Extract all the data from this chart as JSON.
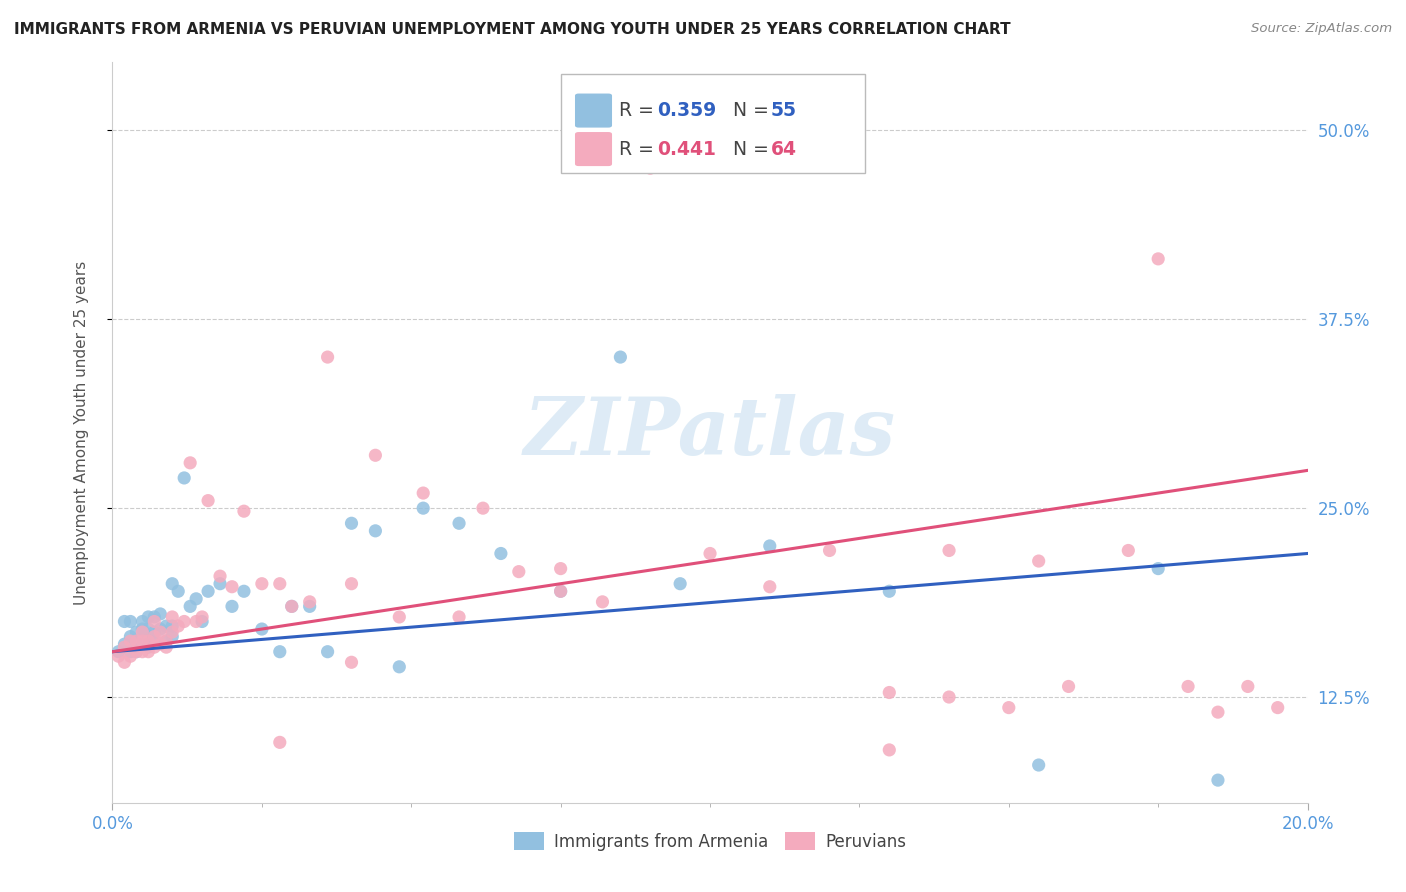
{
  "title": "IMMIGRANTS FROM ARMENIA VS PERUVIAN UNEMPLOYMENT AMONG YOUTH UNDER 25 YEARS CORRELATION CHART",
  "source": "Source: ZipAtlas.com",
  "ylabel": "Unemployment Among Youth under 25 years",
  "ytick_labels": [
    "12.5%",
    "25.0%",
    "37.5%",
    "50.0%"
  ],
  "ytick_values": [
    0.125,
    0.25,
    0.375,
    0.5
  ],
  "xlim": [
    0.0,
    0.2
  ],
  "ylim": [
    0.055,
    0.545
  ],
  "legend_blue_R": "0.359",
  "legend_blue_N": "55",
  "legend_pink_R": "0.441",
  "legend_pink_N": "64",
  "legend_label_blue": "Immigrants from Armenia",
  "legend_label_pink": "Peruvians",
  "color_blue": "#92C0E0",
  "color_pink": "#F4ABBE",
  "trendline_blue": "#3060C0",
  "trendline_pink": "#E0507A",
  "watermark_text": "ZIPatlas",
  "watermark_color": "#C8DFF0",
  "blue_x": [
    0.001,
    0.002,
    0.002,
    0.003,
    0.003,
    0.003,
    0.004,
    0.004,
    0.004,
    0.005,
    0.005,
    0.005,
    0.005,
    0.006,
    0.006,
    0.006,
    0.006,
    0.007,
    0.007,
    0.007,
    0.008,
    0.008,
    0.009,
    0.009,
    0.01,
    0.01,
    0.01,
    0.011,
    0.012,
    0.013,
    0.014,
    0.015,
    0.016,
    0.018,
    0.02,
    0.022,
    0.025,
    0.028,
    0.03,
    0.033,
    0.036,
    0.04,
    0.044,
    0.048,
    0.052,
    0.058,
    0.065,
    0.075,
    0.085,
    0.095,
    0.11,
    0.13,
    0.155,
    0.175,
    0.185
  ],
  "blue_y": [
    0.155,
    0.16,
    0.175,
    0.155,
    0.165,
    0.175,
    0.155,
    0.162,
    0.168,
    0.16,
    0.162,
    0.17,
    0.175,
    0.158,
    0.165,
    0.17,
    0.178,
    0.162,
    0.168,
    0.178,
    0.17,
    0.18,
    0.162,
    0.172,
    0.165,
    0.172,
    0.2,
    0.195,
    0.27,
    0.185,
    0.19,
    0.175,
    0.195,
    0.2,
    0.185,
    0.195,
    0.17,
    0.155,
    0.185,
    0.185,
    0.155,
    0.24,
    0.235,
    0.145,
    0.25,
    0.24,
    0.22,
    0.195,
    0.35,
    0.2,
    0.225,
    0.195,
    0.08,
    0.21,
    0.07
  ],
  "pink_x": [
    0.001,
    0.002,
    0.002,
    0.003,
    0.003,
    0.004,
    0.004,
    0.005,
    0.005,
    0.005,
    0.006,
    0.006,
    0.007,
    0.007,
    0.007,
    0.008,
    0.008,
    0.009,
    0.009,
    0.01,
    0.01,
    0.011,
    0.012,
    0.013,
    0.014,
    0.015,
    0.016,
    0.018,
    0.02,
    0.022,
    0.025,
    0.028,
    0.03,
    0.033,
    0.036,
    0.04,
    0.044,
    0.048,
    0.052,
    0.058,
    0.062,
    0.068,
    0.075,
    0.082,
    0.09,
    0.1,
    0.11,
    0.12,
    0.13,
    0.14,
    0.15,
    0.16,
    0.17,
    0.175,
    0.18,
    0.185,
    0.19,
    0.195,
    0.075,
    0.13,
    0.04,
    0.028,
    0.14,
    0.155
  ],
  "pink_y": [
    0.152,
    0.148,
    0.158,
    0.152,
    0.162,
    0.155,
    0.162,
    0.155,
    0.162,
    0.168,
    0.155,
    0.162,
    0.158,
    0.165,
    0.175,
    0.16,
    0.168,
    0.162,
    0.158,
    0.168,
    0.178,
    0.172,
    0.175,
    0.28,
    0.175,
    0.178,
    0.255,
    0.205,
    0.198,
    0.248,
    0.2,
    0.2,
    0.185,
    0.188,
    0.35,
    0.2,
    0.285,
    0.178,
    0.26,
    0.178,
    0.25,
    0.208,
    0.21,
    0.188,
    0.475,
    0.22,
    0.198,
    0.222,
    0.128,
    0.222,
    0.118,
    0.132,
    0.222,
    0.415,
    0.132,
    0.115,
    0.132,
    0.118,
    0.195,
    0.09,
    0.148,
    0.095,
    0.125,
    0.215
  ]
}
